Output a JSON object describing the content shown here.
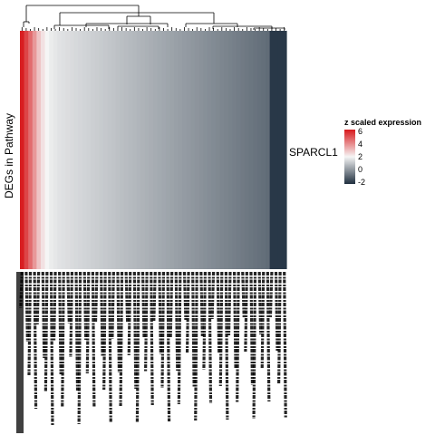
{
  "chart_data": {
    "type": "heatmap",
    "ylabel": "DEGs in Pathway",
    "rows": [
      "SPARCL1"
    ],
    "legend": {
      "title": "z scaled expression",
      "ticks": [
        "6",
        "4",
        "2",
        "0",
        "-2"
      ],
      "colors": [
        "#d7191c",
        "#f5f5f5",
        "#1f2f3f"
      ],
      "range": [
        -2.2,
        6.5
      ]
    },
    "columns_count": 64,
    "values": [
      6.4,
      5.6,
      4.8,
      3.9,
      3.0,
      2.4,
      2.0,
      1.8,
      1.7,
      1.6,
      1.55,
      1.5,
      1.45,
      1.4,
      1.35,
      1.3,
      1.25,
      1.2,
      1.15,
      1.1,
      1.05,
      1.0,
      0.95,
      0.9,
      0.85,
      0.8,
      0.75,
      0.7,
      0.65,
      0.6,
      0.55,
      0.5,
      0.45,
      0.4,
      0.35,
      0.3,
      0.25,
      0.2,
      0.15,
      0.1,
      0.05,
      0.0,
      -0.05,
      -0.1,
      -0.15,
      -0.2,
      -0.25,
      -0.3,
      -0.35,
      -0.4,
      -0.45,
      -0.5,
      -0.55,
      -0.6,
      -0.65,
      -0.7,
      -0.75,
      -0.8,
      -0.85,
      -0.9,
      -2.0,
      -2.0,
      -2.0,
      -2.0
    ],
    "legend_placement": "right"
  }
}
